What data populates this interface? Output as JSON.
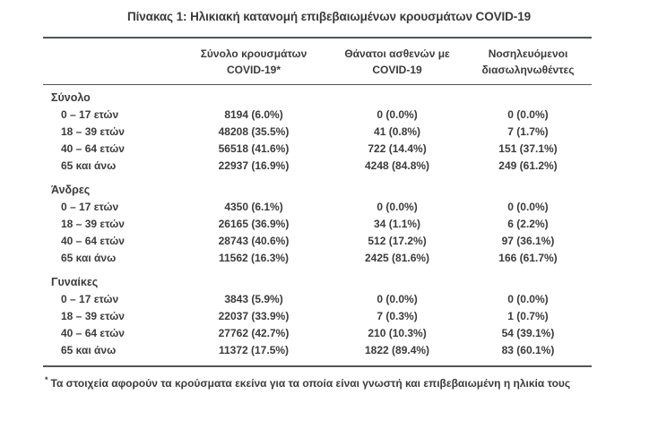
{
  "title": "Πίνακας 1: Ηλικιακή κατανομή επιβεβαιωμένων κρουσμάτων COVID-19",
  "table": {
    "header": {
      "col2": {
        "line1": "Σύνολο κρουσμάτων",
        "line2": "COVID-19*"
      },
      "col3": {
        "line1": "Θάνατοι ασθενών με",
        "line2": "COVID-19"
      },
      "col4": {
        "line1": "Νοσηλευόμενοι",
        "line2": "διασωληνωθέντες"
      }
    },
    "sections": [
      {
        "label": "Σύνολο",
        "rows": [
          [
            "0 – 17 ετών",
            "8194 (6.0%)",
            "0 (0.0%)",
            "0 (0.0%)"
          ],
          [
            "18 – 39 ετών",
            "48208 (35.5%)",
            "41 (0.8%)",
            "7 (1.7%)"
          ],
          [
            "40 – 64 ετών",
            "56518 (41.6%)",
            "722 (14.4%)",
            "151 (37.1%)"
          ],
          [
            "65 και άνω",
            "22937 (16.9%)",
            "4248 (84.8%)",
            "249 (61.2%)"
          ]
        ]
      },
      {
        "label": "Άνδρες",
        "rows": [
          [
            "0 – 17 ετών",
            "4350 (6.1%)",
            "0 (0.0%)",
            "0 (0.0%)"
          ],
          [
            "18 – 39 ετών",
            "26165 (36.9%)",
            "34 (1.1%)",
            "6 (2.2%)"
          ],
          [
            "40 – 64 ετών",
            "28743 (40.6%)",
            "512 (17.2%)",
            "97 (36.1%)"
          ],
          [
            "65 και άνω",
            "11562 (16.3%)",
            "2425 (81.6%)",
            "166 (61.7%)"
          ]
        ]
      },
      {
        "label": "Γυναίκες",
        "rows": [
          [
            "0 – 17 ετών",
            "3843 (5.9%)",
            "0 (0.0%)",
            "0 (0.0%)"
          ],
          [
            "18 – 39 ετών",
            "22037 (33.9%)",
            "7 (0.3%)",
            "1 (0.7%)"
          ],
          [
            "40 – 64 ετών",
            "27762 (42.7%)",
            "210 (10.3%)",
            "54 (39.1%)"
          ],
          [
            "65 και άνω",
            "11372 (17.5%)",
            "1822 (89.4%)",
            "83 (60.1%)"
          ]
        ]
      }
    ]
  },
  "footnote": {
    "marker": "*",
    "text": "Τα στοιχεία αφορούν τα κρούσματα εκείνα για τα οποία είναι γνωστή και επιβεβαιωμένη η ηλικία τους"
  },
  "colors": {
    "text": "#3b3b3d",
    "rule": "#54555a",
    "background": "#ffffff"
  }
}
